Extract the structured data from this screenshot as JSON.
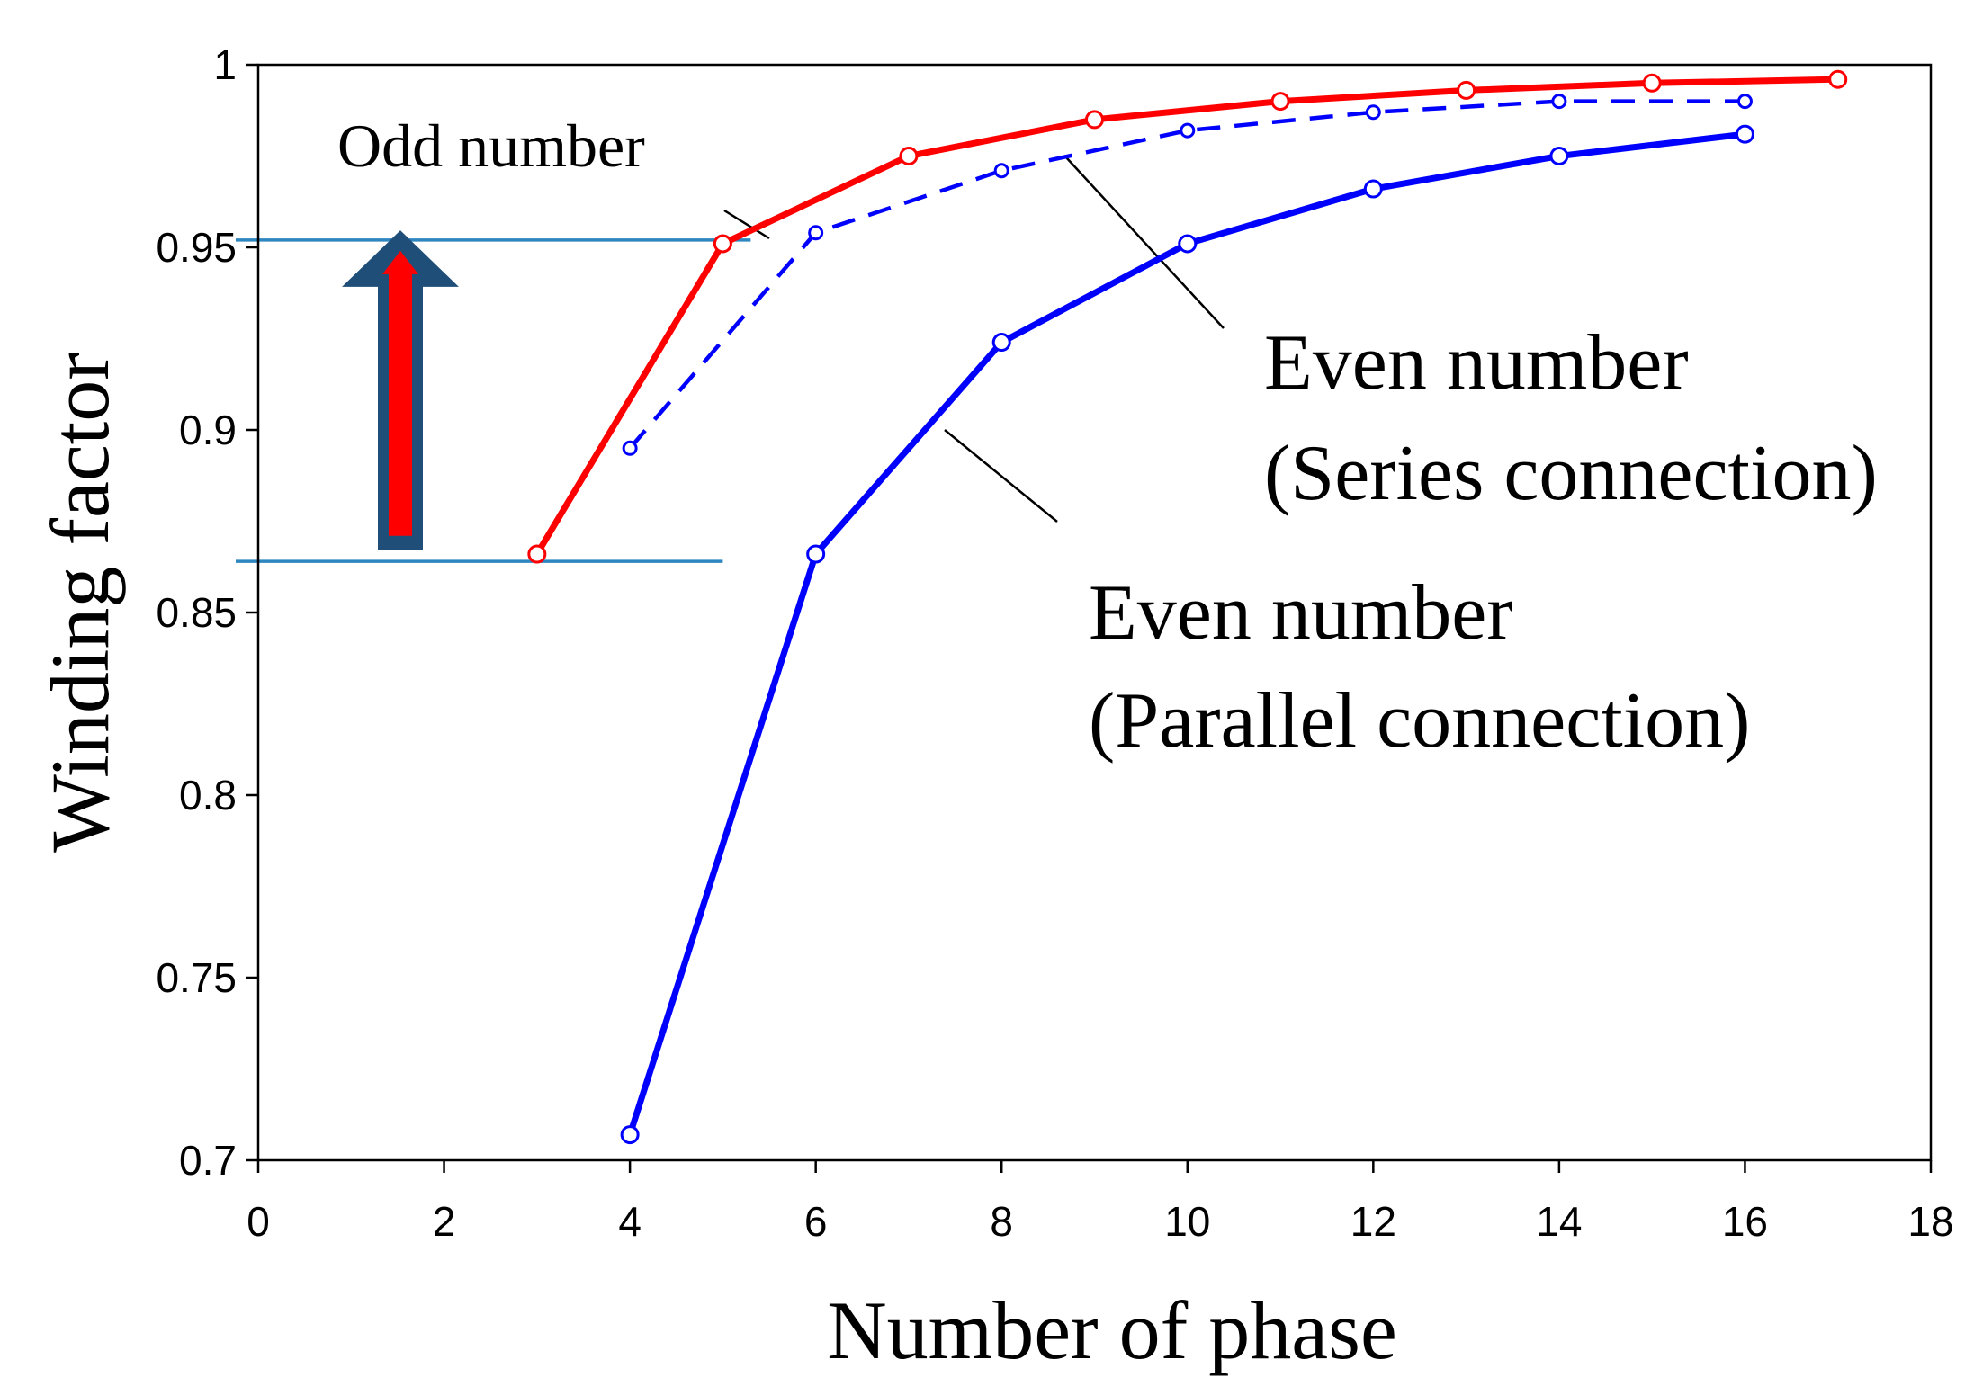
{
  "chart_data": {
    "type": "line",
    "xlabel": "Number of phase",
    "ylabel": "Winding  factor",
    "xlim": [
      0,
      18
    ],
    "ylim": [
      0.7,
      1.0
    ],
    "x_ticks": [
      "0",
      "2",
      "4",
      "6",
      "8",
      "10",
      "12",
      "14",
      "16",
      "18"
    ],
    "y_ticks": [
      "0.7",
      "0.75",
      "0.8",
      "0.85",
      "0.9",
      "0.95",
      "1"
    ],
    "grid": false,
    "series": [
      {
        "name": "Odd number",
        "color": "#ff0000",
        "style": "solid",
        "marker": "circle",
        "x": [
          3,
          5,
          7,
          9,
          11,
          13,
          15,
          17
        ],
        "y": [
          0.866,
          0.951,
          0.975,
          0.985,
          0.99,
          0.993,
          0.995,
          0.996
        ]
      },
      {
        "name": "Even number (Series connection)",
        "color": "#0000ff",
        "style": "dashed",
        "marker": "circle",
        "x": [
          4,
          6,
          8,
          10,
          12,
          14,
          16
        ],
        "y": [
          0.895,
          0.954,
          0.971,
          0.982,
          0.987,
          0.99,
          0.99
        ]
      },
      {
        "name": "Even number (Parallel connection)",
        "color": "#0000ff",
        "style": "solid",
        "marker": "circle",
        "x": [
          4,
          6,
          8,
          10,
          12,
          14,
          16
        ],
        "y": [
          0.707,
          0.866,
          0.924,
          0.951,
          0.966,
          0.975,
          0.981
        ]
      }
    ],
    "reference_lines": [
      {
        "y": 0.952,
        "x_end": 5.3,
        "color": "#2e86c1"
      },
      {
        "y": 0.864,
        "x_end": 5.0,
        "color": "#2e86c1"
      }
    ],
    "arrow": {
      "from_y": 0.87,
      "to_y": 0.952,
      "direction": "up",
      "fill": "#ff0000",
      "border": "#1f4e79"
    },
    "annotations": {
      "odd": "Odd number",
      "series_line1": "Even number",
      "series_line2": "(Series  connection)",
      "parallel_line1": "Even number",
      "parallel_line2": "(Parallel  connection)"
    }
  }
}
